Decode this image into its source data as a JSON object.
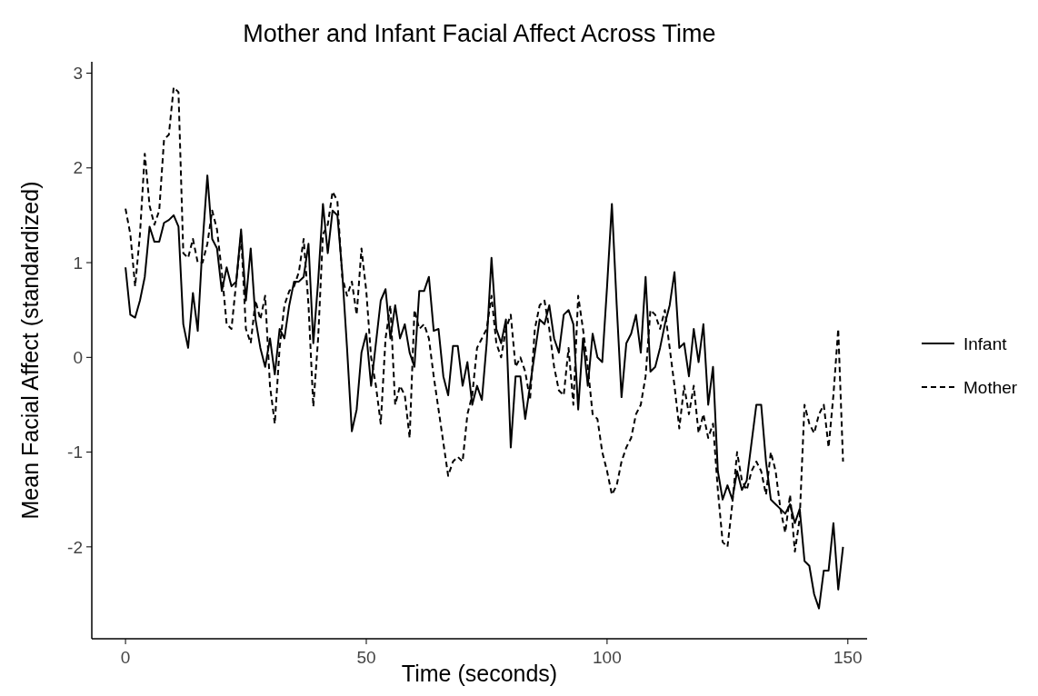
{
  "chart_data": {
    "type": "line",
    "title": "Mother and Infant Facial Affect Across Time",
    "xlabel": "Time (seconds)",
    "ylabel": "Mean Facial Affect (standardized)",
    "x": [
      0,
      1,
      2,
      3,
      4,
      5,
      6,
      7,
      8,
      9,
      10,
      11,
      12,
      13,
      14,
      15,
      16,
      17,
      18,
      19,
      20,
      21,
      22,
      23,
      24,
      25,
      26,
      27,
      28,
      29,
      30,
      31,
      32,
      33,
      34,
      35,
      36,
      37,
      38,
      39,
      40,
      41,
      42,
      43,
      44,
      45,
      46,
      47,
      48,
      49,
      50,
      51,
      52,
      53,
      54,
      55,
      56,
      57,
      58,
      59,
      60,
      61,
      62,
      63,
      64,
      65,
      66,
      67,
      68,
      69,
      70,
      71,
      72,
      73,
      74,
      75,
      76,
      77,
      78,
      79,
      80,
      81,
      82,
      83,
      84,
      85,
      86,
      87,
      88,
      89,
      90,
      91,
      92,
      93,
      94,
      95,
      96,
      97,
      98,
      99,
      100,
      101,
      102,
      103,
      104,
      105,
      106,
      107,
      108,
      109,
      110,
      111,
      112,
      113,
      114,
      115,
      116,
      117,
      118,
      119,
      120,
      121,
      122,
      123,
      124,
      125,
      126,
      127,
      128,
      129,
      130,
      131,
      132,
      133,
      134,
      135,
      136,
      137,
      138,
      139,
      140,
      141,
      142,
      143,
      144,
      145,
      146,
      147,
      148,
      149
    ],
    "series": [
      {
        "name": "Infant",
        "color": "#000000",
        "line_style": "solid",
        "values": [
          0.95,
          0.45,
          0.42,
          0.6,
          0.85,
          1.38,
          1.22,
          1.22,
          1.42,
          1.45,
          1.5,
          1.38,
          0.35,
          0.1,
          0.68,
          0.28,
          1.2,
          1.92,
          1.25,
          1.15,
          0.7,
          0.95,
          0.75,
          0.8,
          1.35,
          0.6,
          1.15,
          0.4,
          0.1,
          -0.1,
          0.2,
          -0.18,
          0.3,
          0.2,
          0.55,
          0.8,
          0.8,
          0.85,
          1.2,
          0.15,
          0.8,
          1.62,
          1.1,
          1.55,
          1.5,
          0.9,
          0.1,
          -0.78,
          -0.55,
          0.05,
          0.25,
          -0.3,
          0.15,
          0.6,
          0.72,
          0.2,
          0.55,
          0.2,
          0.35,
          0.05,
          -0.1,
          0.7,
          0.7,
          0.85,
          0.28,
          0.3,
          -0.2,
          -0.4,
          0.12,
          0.12,
          -0.3,
          -0.05,
          -0.5,
          -0.3,
          -0.45,
          0.15,
          1.05,
          0.3,
          0.15,
          0.4,
          -0.95,
          -0.2,
          -0.2,
          -0.65,
          -0.3,
          0.05,
          0.4,
          0.35,
          0.55,
          0.2,
          0.05,
          0.45,
          0.5,
          0.35,
          -0.55,
          0.2,
          -0.3,
          0.25,
          0.0,
          -0.05,
          0.75,
          1.62,
          0.55,
          -0.42,
          0.15,
          0.25,
          0.45,
          0.05,
          0.85,
          -0.15,
          -0.1,
          0.1,
          0.35,
          0.55,
          0.9,
          0.1,
          0.15,
          -0.2,
          0.3,
          -0.05,
          0.35,
          -0.5,
          -0.1,
          -1.2,
          -1.5,
          -1.35,
          -1.5,
          -1.2,
          -1.4,
          -1.3,
          -0.9,
          -0.5,
          -0.5,
          -1.1,
          -1.5,
          -1.55,
          -1.6,
          -1.65,
          -1.55,
          -1.75,
          -1.6,
          -2.15,
          -2.2,
          -2.5,
          -2.65,
          -2.25,
          -2.25,
          -1.75,
          -2.45,
          -2.0
        ]
      },
      {
        "name": "Mother",
        "color": "#000000",
        "line_style": "dashed",
        "values": [
          1.57,
          1.3,
          0.75,
          1.3,
          2.15,
          1.6,
          1.4,
          1.55,
          2.3,
          2.35,
          2.85,
          2.8,
          1.1,
          1.05,
          1.25,
          1.0,
          1.0,
          1.2,
          1.55,
          1.35,
          0.9,
          0.35,
          0.3,
          0.8,
          1.3,
          0.3,
          0.15,
          0.6,
          0.4,
          0.65,
          -0.3,
          -0.7,
          0.1,
          0.55,
          0.7,
          0.75,
          0.9,
          1.25,
          0.55,
          -0.52,
          0.2,
          1.3,
          1.4,
          1.75,
          1.65,
          0.85,
          0.65,
          0.8,
          0.45,
          1.15,
          0.7,
          0.0,
          -0.3,
          -0.7,
          0.2,
          0.55,
          -0.5,
          -0.3,
          -0.4,
          -0.85,
          0.5,
          0.3,
          0.35,
          0.2,
          -0.2,
          -0.55,
          -0.9,
          -1.25,
          -1.1,
          -1.05,
          -1.1,
          -0.6,
          -0.4,
          0.1,
          0.2,
          0.3,
          0.65,
          0.15,
          0.0,
          0.3,
          0.45,
          -0.1,
          0.0,
          -0.15,
          -0.45,
          0.3,
          0.55,
          0.6,
          0.3,
          -0.1,
          -0.35,
          -0.4,
          0.1,
          -0.5,
          0.65,
          0.3,
          -0.1,
          -0.6,
          -0.65,
          -1.0,
          -1.2,
          -1.45,
          -1.35,
          -1.1,
          -0.95,
          -0.85,
          -0.6,
          -0.5,
          -0.2,
          0.5,
          0.45,
          0.3,
          0.5,
          0.1,
          -0.3,
          -0.75,
          -0.3,
          -0.6,
          -0.3,
          -0.8,
          -0.6,
          -0.85,
          -0.7,
          -1.4,
          -1.95,
          -2.0,
          -1.55,
          -1.0,
          -1.3,
          -1.4,
          -1.2,
          -1.1,
          -1.2,
          -1.45,
          -1.0,
          -1.2,
          -1.6,
          -1.85,
          -1.45,
          -2.05,
          -1.7,
          -0.5,
          -0.7,
          -0.8,
          -0.6,
          -0.5,
          -0.95,
          -0.4,
          0.3,
          -1.1
        ]
      }
    ],
    "xlim": [
      -7,
      154
    ],
    "ylim": [
      -2.97,
      3.12
    ],
    "xticks": [
      0,
      50,
      100,
      150
    ],
    "yticks": [
      -2,
      -1,
      0,
      1,
      2,
      3
    ],
    "grid": false,
    "legend": "right"
  }
}
